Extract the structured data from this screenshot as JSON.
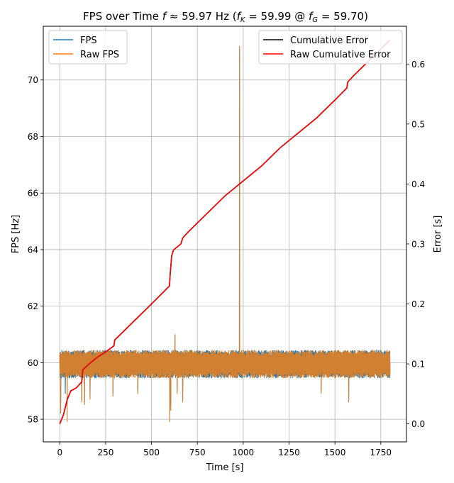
{
  "chart_data": {
    "type": "line",
    "title": "FPS over Time f ≈ 59.97 Hz (f_K = 59.99 @ f_G = 59.70)",
    "title_parts": {
      "prefix": "FPS over Time ",
      "f": "f",
      "approx": " ≈ 59.97 Hz (",
      "fK_base": "f",
      "fK_sub": "K",
      "fK_rest": " = 59.99 @ ",
      "fG_base": "f",
      "fG_sub": "G",
      "fG_rest": " = 59.70)"
    },
    "xlabel": "Time [s]",
    "ylabel_left": "FPS [Hz]",
    "ylabel_right": "Error [s]",
    "xlim": [
      -90,
      1890
    ],
    "ylim_left": [
      57.2,
      71.9
    ],
    "ylim_right": [
      -0.03,
      0.663
    ],
    "xticks": [
      0,
      250,
      500,
      750,
      1000,
      1250,
      1500,
      1750
    ],
    "yticks_left": [
      58,
      60,
      62,
      64,
      66,
      68,
      70
    ],
    "yticks_right": [
      0.0,
      0.1,
      0.2,
      0.3,
      0.4,
      0.5,
      0.6
    ],
    "grid": true,
    "legend_left": {
      "placement": "top-left",
      "entries": [
        "FPS",
        "Raw FPS"
      ]
    },
    "legend_right": {
      "placement": "top-right",
      "entries": [
        "Cumulative Error",
        "Raw Cumulative Error"
      ]
    },
    "colors": {
      "fps": "#1f77b4",
      "raw_fps": "#ff7f0e",
      "overlap": "#d08030",
      "cumulative_error": "#000000",
      "raw_cumulative_error": "#ff0000"
    },
    "series": [
      {
        "name": "FPS",
        "axis": "left",
        "x_range": [
          0,
          1800
        ],
        "baseline": 59.97,
        "band_low": 59.45,
        "band_high": 60.45,
        "dips": [
          [
            5,
            58.6
          ],
          [
            30,
            58.9
          ],
          [
            120,
            58.7
          ],
          [
            135,
            58.6
          ],
          [
            165,
            58.8
          ],
          [
            290,
            58.9
          ],
          [
            425,
            59.0
          ],
          [
            600,
            58.2
          ],
          [
            605,
            58.5
          ],
          [
            640,
            59.0
          ],
          [
            670,
            58.7
          ],
          [
            1425,
            59.0
          ],
          [
            1575,
            58.7
          ]
        ],
        "peaks": [
          [
            628,
            61.0
          ],
          [
            980,
            71.1
          ]
        ]
      },
      {
        "name": "Raw FPS",
        "axis": "left",
        "x_range": [
          0,
          1800
        ],
        "baseline": 59.97,
        "band_low": 59.45,
        "band_high": 60.45,
        "dips": [
          [
            5,
            58.2
          ],
          [
            40,
            57.9
          ],
          [
            120,
            58.6
          ],
          [
            135,
            58.5
          ],
          [
            165,
            58.7
          ],
          [
            290,
            58.8
          ],
          [
            425,
            58.9
          ],
          [
            600,
            57.9
          ],
          [
            605,
            58.3
          ],
          [
            640,
            58.9
          ],
          [
            670,
            58.6
          ],
          [
            1425,
            58.9
          ],
          [
            1575,
            58.6
          ]
        ],
        "peaks": [
          [
            628,
            61.0
          ],
          [
            980,
            71.2
          ]
        ]
      },
      {
        "name": "Cumulative Error",
        "axis": "right",
        "x": [
          0,
          20,
          40,
          60,
          90,
          120,
          125,
          160,
          200,
          250,
          295,
          300,
          400,
          500,
          598,
          602,
          610,
          620,
          660,
          670,
          700,
          800,
          900,
          1000,
          1100,
          1200,
          1300,
          1400,
          1500,
          1565,
          1570,
          1600,
          1700,
          1800
        ],
        "values": [
          0.0,
          0.015,
          0.04,
          0.055,
          0.06,
          0.07,
          0.09,
          0.1,
          0.11,
          0.12,
          0.13,
          0.14,
          0.17,
          0.2,
          0.23,
          0.25,
          0.28,
          0.29,
          0.3,
          0.31,
          0.32,
          0.35,
          0.38,
          0.405,
          0.43,
          0.46,
          0.485,
          0.51,
          0.54,
          0.56,
          0.57,
          0.58,
          0.61,
          0.64
        ]
      },
      {
        "name": "Raw Cumulative Error",
        "axis": "right",
        "x": [
          0,
          20,
          40,
          60,
          90,
          120,
          125,
          160,
          200,
          250,
          295,
          300,
          400,
          500,
          598,
          602,
          610,
          620,
          660,
          670,
          700,
          800,
          900,
          1000,
          1100,
          1200,
          1300,
          1400,
          1500,
          1565,
          1570,
          1600,
          1700,
          1800
        ],
        "values": [
          0.0,
          0.015,
          0.04,
          0.055,
          0.06,
          0.07,
          0.09,
          0.1,
          0.11,
          0.12,
          0.13,
          0.14,
          0.17,
          0.2,
          0.23,
          0.25,
          0.28,
          0.29,
          0.3,
          0.31,
          0.32,
          0.35,
          0.38,
          0.405,
          0.43,
          0.46,
          0.485,
          0.51,
          0.54,
          0.56,
          0.57,
          0.58,
          0.61,
          0.64
        ]
      }
    ]
  }
}
